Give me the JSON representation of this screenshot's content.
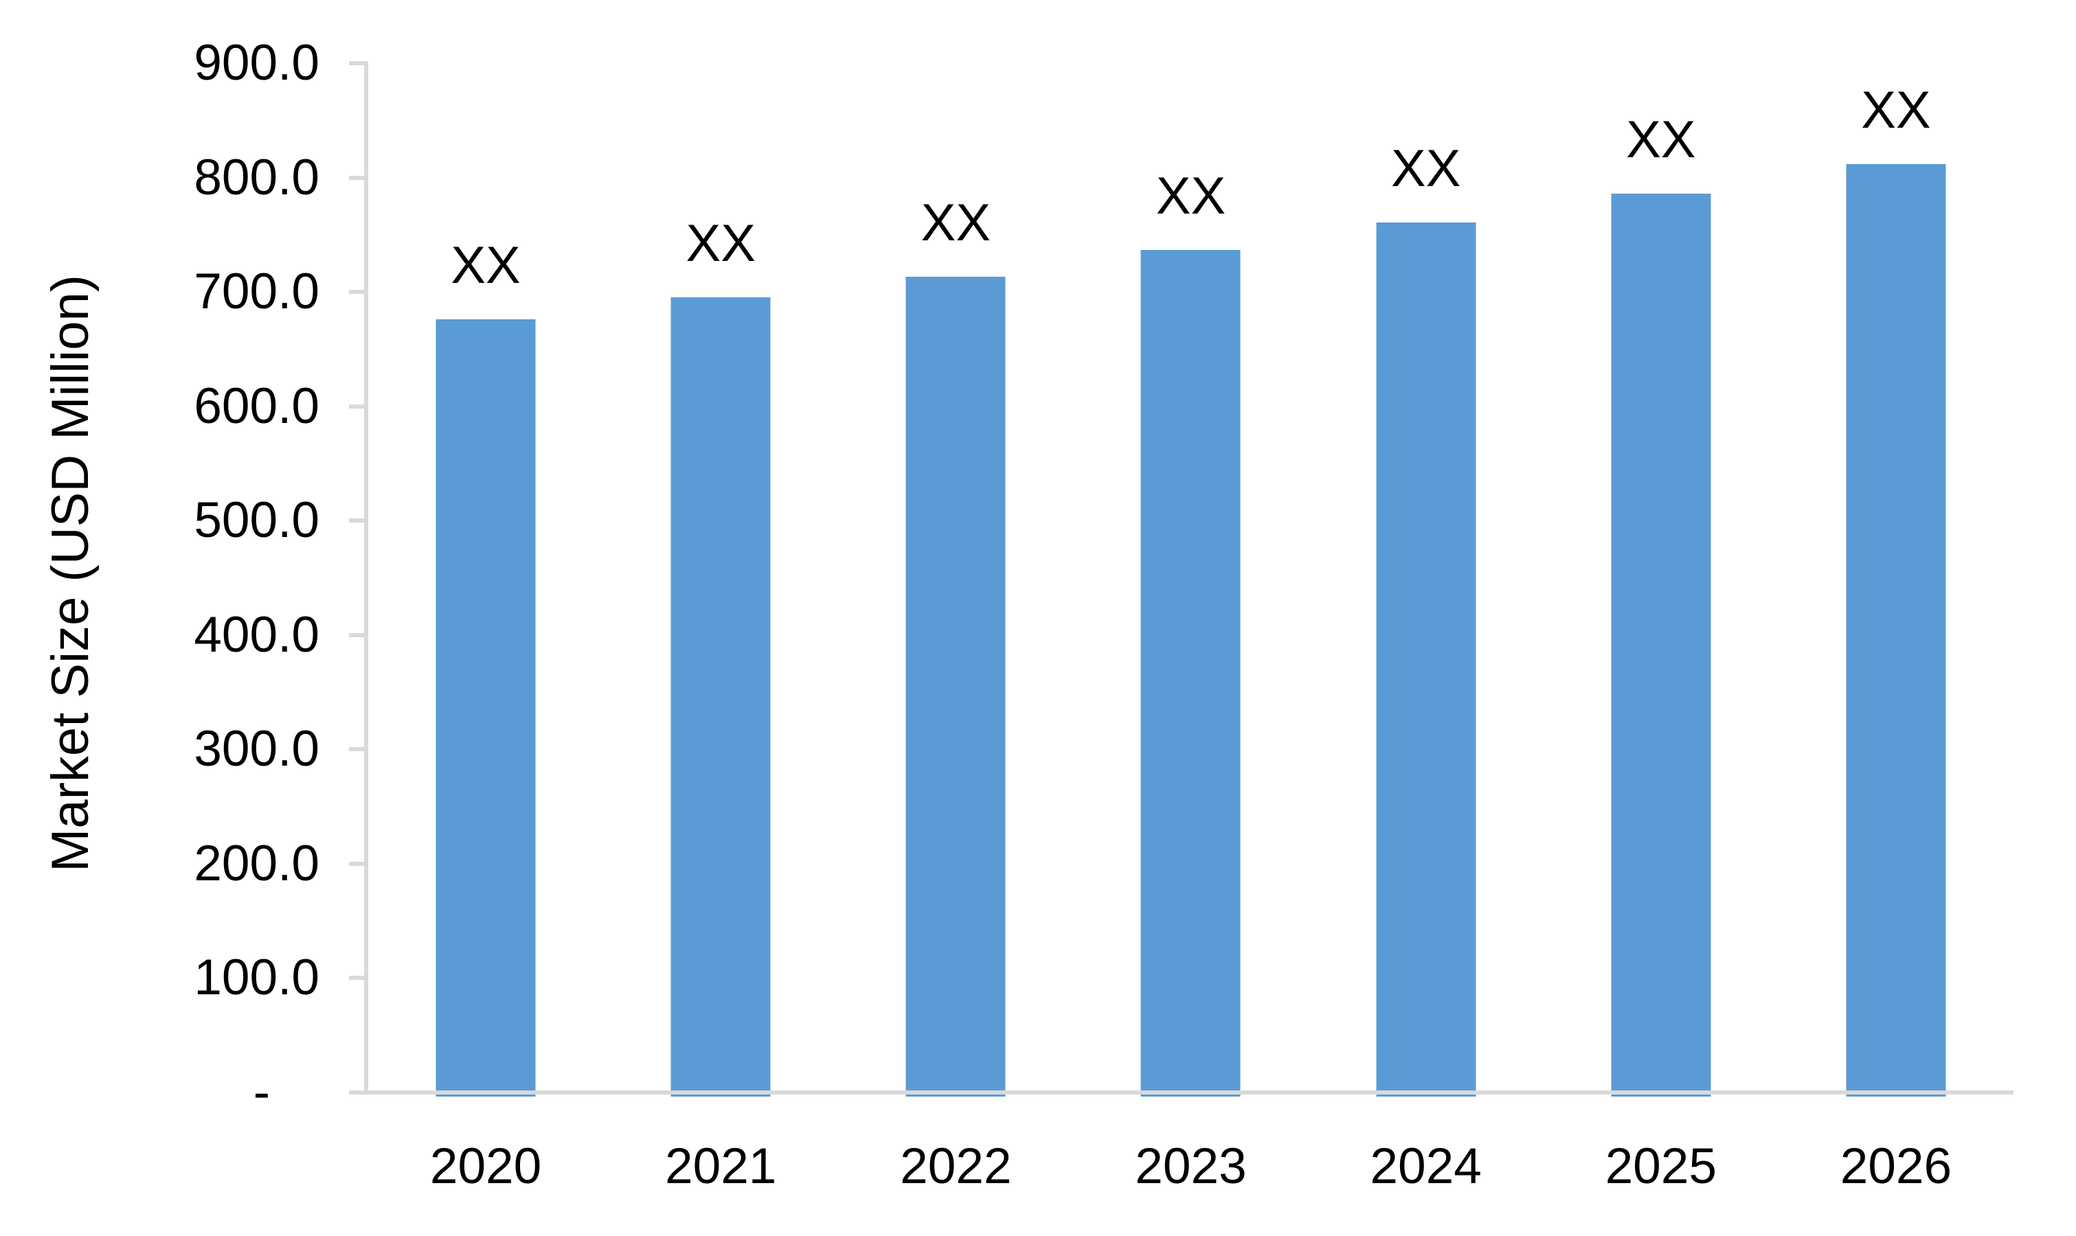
{
  "chart_data": {
    "type": "bar",
    "title": "",
    "xlabel": "",
    "ylabel": "Market Size (USD Million)",
    "categories": [
      "2020",
      "2021",
      "2022",
      "2023",
      "2024",
      "2025",
      "2026"
    ],
    "values": [
      676,
      695,
      713,
      737,
      761,
      786,
      812
    ],
    "bar_labels": [
      "XX",
      "XX",
      "XX",
      "XX",
      "XX",
      "XX",
      "XX"
    ],
    "ylim": [
      0,
      900
    ],
    "ytick_interval": 100,
    "ytick_labels": [
      "900.0",
      "800.0",
      "700.0",
      "600.0",
      "500.0",
      "400.0",
      "300.0",
      "200.0",
      "100.0",
      "-"
    ],
    "grid": false,
    "legend_position": "none",
    "bar_color": "#5b9bd5",
    "axis_color": "#d9d9d9",
    "text_color": "#000000",
    "background_color": "#ffffff"
  }
}
